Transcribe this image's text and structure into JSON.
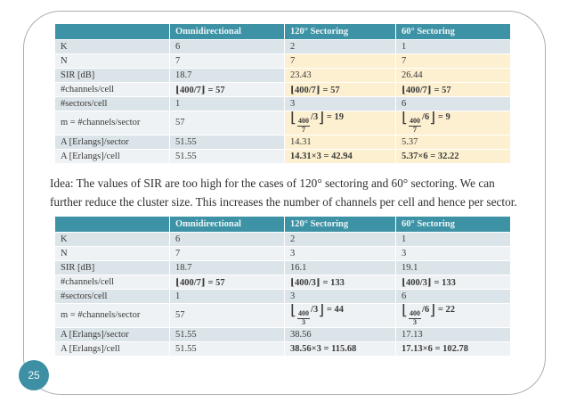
{
  "page": {
    "number": "25"
  },
  "colors": {
    "header_teal": "#3e92a5",
    "band_dark": "#dbe4e9",
    "band_light": "#eef2f4",
    "highlight_cream": "#fdf0d1",
    "badge_teal": "#3d90a3"
  },
  "idea": {
    "lines": [
      "Idea: The values of SIR are too high for the cases of 120° sectoring and 60° sectoring. We can",
      "further reduce the cluster size. This increases the number of channels per cell and hence per sector."
    ]
  },
  "tables": [
    {
      "headers": [
        "",
        "Omnidirectional",
        "120° Sectoring",
        "60° Sectoring"
      ],
      "rows": [
        {
          "label": "K",
          "cells": [
            {
              "t": "6"
            },
            {
              "t": "2"
            },
            {
              "t": "1"
            }
          ]
        },
        {
          "label": "N",
          "cells": [
            {
              "t": "7"
            },
            {
              "t": "7",
              "hl": true
            },
            {
              "t": "7",
              "hl": true
            }
          ]
        },
        {
          "label": "SIR [dB]",
          "cells": [
            {
              "t": "18.7"
            },
            {
              "t": "23.43",
              "hl": true
            },
            {
              "t": "26.44",
              "hl": true
            }
          ]
        },
        {
          "label": "#channels/cell",
          "cells": [
            {
              "t": "⌊400/7⌋ = 57",
              "math": true
            },
            {
              "t": "⌊400/7⌋ = 57",
              "math": true,
              "hl": true
            },
            {
              "t": "⌊400/7⌋ = 57",
              "math": true,
              "hl": true
            }
          ]
        },
        {
          "label": "#sectors/cell",
          "cells": [
            {
              "t": "1"
            },
            {
              "t": "3"
            },
            {
              "t": "6"
            }
          ]
        },
        {
          "label": "m = #channels/sector",
          "cells": [
            {
              "t": "57"
            },
            {
              "frac": {
                "num": "400",
                "den": "7",
                "after": "/3",
                "eq": " = 19"
              },
              "hl": true
            },
            {
              "frac": {
                "num": "400",
                "den": "7",
                "after": "/6",
                "eq": " = 9"
              },
              "hl": true
            }
          ]
        },
        {
          "label": "A [Erlangs]/sector",
          "cells": [
            {
              "t": "51.55"
            },
            {
              "t": "14.31",
              "hl": true
            },
            {
              "t": "5.37",
              "hl": true
            }
          ]
        },
        {
          "label": "A [Erlangs]/cell",
          "cells": [
            {
              "t": "51.55"
            },
            {
              "t": "14.31×3 = 42.94",
              "math": true,
              "hl": true
            },
            {
              "t": "5.37×6 = 32.22",
              "math": true,
              "hl": true
            }
          ]
        }
      ]
    },
    {
      "headers": [
        "",
        "Omnidirectional",
        "120° Sectoring",
        "60° Sectoring"
      ],
      "rows": [
        {
          "label": "K",
          "cells": [
            {
              "t": "6"
            },
            {
              "t": "2"
            },
            {
              "t": "1"
            }
          ]
        },
        {
          "label": "N",
          "cells": [
            {
              "t": "7"
            },
            {
              "t": "3"
            },
            {
              "t": "3"
            }
          ]
        },
        {
          "label": "SIR [dB]",
          "cells": [
            {
              "t": "18.7"
            },
            {
              "t": "16.1"
            },
            {
              "t": "19.1"
            }
          ]
        },
        {
          "label": "#channels/cell",
          "cells": [
            {
              "t": "⌊400/7⌋ = 57",
              "math": true
            },
            {
              "t": "⌊400/3⌋ = 133",
              "math": true
            },
            {
              "t": "⌊400/3⌋ = 133",
              "math": true
            }
          ]
        },
        {
          "label": "#sectors/cell",
          "cells": [
            {
              "t": "1"
            },
            {
              "t": "3"
            },
            {
              "t": "6"
            }
          ]
        },
        {
          "label": "m = #channels/sector",
          "cells": [
            {
              "t": "57"
            },
            {
              "frac": {
                "num": "400",
                "den": "3",
                "after": "/3",
                "eq": " = 44"
              }
            },
            {
              "frac": {
                "num": "400",
                "den": "3",
                "after": "/6",
                "eq": " = 22"
              }
            }
          ]
        },
        {
          "label": "A [Erlangs]/sector",
          "cells": [
            {
              "t": "51.55"
            },
            {
              "t": "38.56"
            },
            {
              "t": "17.13"
            }
          ]
        },
        {
          "label": "A [Erlangs]/cell",
          "cells": [
            {
              "t": "51.55"
            },
            {
              "t": "38.56×3 = 115.68",
              "math": true
            },
            {
              "t": "17.13×6 = 102.78",
              "math": true
            }
          ]
        }
      ]
    }
  ]
}
